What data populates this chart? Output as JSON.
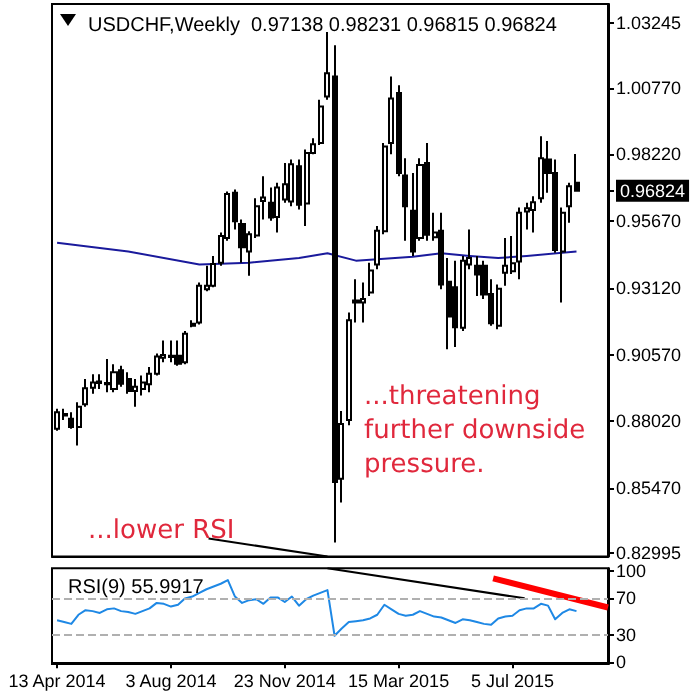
{
  "chart_data": [
    {
      "type": "candlestick",
      "title": "USDCHF,Weekly  0.97138 0.98231 0.96815 0.96824",
      "x": [
        "2014-04-13",
        "2014-04-20",
        "2014-04-27",
        "2014-05-04",
        "2014-05-11",
        "2014-05-18",
        "2014-05-25",
        "2014-06-01",
        "2014-06-08",
        "2014-06-15",
        "2014-06-22",
        "2014-06-29",
        "2014-07-06",
        "2014-07-13",
        "2014-07-20",
        "2014-07-27",
        "2014-08-03",
        "2014-08-10",
        "2014-08-17",
        "2014-08-24",
        "2014-08-31",
        "2014-09-07",
        "2014-09-14",
        "2014-09-21",
        "2014-09-28",
        "2014-10-05",
        "2014-10-12",
        "2014-10-19",
        "2014-10-26",
        "2014-11-02",
        "2014-11-09",
        "2014-11-16",
        "2014-11-23",
        "2014-11-30",
        "2014-12-07",
        "2014-12-14",
        "2014-12-21",
        "2014-12-28",
        "2015-01-04",
        "2015-01-11",
        "2015-01-18",
        "2015-01-25",
        "2015-02-01",
        "2015-02-08",
        "2015-02-15",
        "2015-02-22",
        "2015-03-01",
        "2015-03-08",
        "2015-03-15",
        "2015-03-22",
        "2015-03-29",
        "2015-04-05",
        "2015-04-12",
        "2015-04-19",
        "2015-04-26",
        "2015-05-03",
        "2015-05-10",
        "2015-05-17",
        "2015-05-24",
        "2015-05-31",
        "2015-06-07",
        "2015-06-14",
        "2015-06-21",
        "2015-06-28",
        "2015-07-05",
        "2015-07-12",
        "2015-07-19",
        "2015-07-26",
        "2015-08-02",
        "2015-08-09",
        "2015-08-16",
        "2015-08-23",
        "2015-08-30",
        "2015-09-06"
      ],
      "series": [
        {
          "type": "candlestick",
          "color": "#000000",
          "ohlc": [
            [
              0.8774,
              0.885,
              0.8766,
              0.8837
            ],
            [
              0.8825,
              0.885,
              0.8807,
              0.883
            ],
            [
              0.8812,
              0.8837,
              0.8774,
              0.8781
            ],
            [
              0.8781,
              0.8875,
              0.871,
              0.8858
            ],
            [
              0.8868,
              0.8964,
              0.8858,
              0.8929
            ],
            [
              0.8931,
              0.8982,
              0.8908,
              0.8951
            ],
            [
              0.8949,
              0.8982,
              0.8926,
              0.8954
            ],
            [
              0.8944,
              0.904,
              0.8913,
              0.8949
            ],
            [
              0.8926,
              0.902,
              0.8913,
              0.899
            ],
            [
              0.8997,
              0.9015,
              0.8934,
              0.8946
            ],
            [
              0.8964,
              0.899,
              0.8908,
              0.8918
            ],
            [
              0.8918,
              0.8964,
              0.8858,
              0.8934
            ],
            [
              0.8926,
              0.8977,
              0.8901,
              0.8951
            ],
            [
              0.8944,
              0.901,
              0.8913,
              0.8984
            ],
            [
              0.8984,
              0.9061,
              0.8977,
              0.905
            ],
            [
              0.9045,
              0.9111,
              0.9028,
              0.9056
            ],
            [
              0.9053,
              0.9111,
              0.9028,
              0.9048
            ],
            [
              0.9053,
              0.9111,
              0.9015,
              0.9022
            ],
            [
              0.9028,
              0.9147,
              0.902,
              0.9137
            ],
            [
              0.9167,
              0.9188,
              0.9162,
              0.9175
            ],
            [
              0.918,
              0.9332,
              0.9172,
              0.932
            ],
            [
              0.9307,
              0.9396,
              0.9299,
              0.932
            ],
            [
              0.932,
              0.9434,
              0.9314,
              0.9403
            ],
            [
              0.9408,
              0.9523,
              0.9396,
              0.951
            ],
            [
              0.9502,
              0.968,
              0.9492,
              0.967
            ],
            [
              0.9675,
              0.9688,
              0.9535,
              0.9566
            ],
            [
              0.9556,
              0.9573,
              0.9408,
              0.9467
            ],
            [
              0.9451,
              0.9528,
              0.9358,
              0.9517
            ],
            [
              0.9512,
              0.9654,
              0.9502,
              0.9624
            ],
            [
              0.9644,
              0.9738,
              0.9573,
              0.9657
            ],
            [
              0.9637,
              0.9695,
              0.9568,
              0.9581
            ],
            [
              0.9583,
              0.9713,
              0.9523,
              0.9695
            ],
            [
              0.9649,
              0.9789,
              0.9637,
              0.9708
            ],
            [
              0.9642,
              0.9802,
              0.9624,
              0.9784
            ],
            [
              0.9776,
              0.9802,
              0.9611,
              0.9629
            ],
            [
              0.9634,
              0.984,
              0.9548,
              0.9827
            ],
            [
              0.9827,
              0.9883,
              0.9822,
              0.986
            ],
            [
              0.9865,
              1.003,
              0.9858,
              1.0005
            ],
            [
              1.0043,
              1.0289,
              1.003,
              1.0132
            ],
            [
              1.0119,
              1.0238,
              0.834,
              0.8571
            ],
            [
              0.8583,
              0.8842,
              0.8492,
              0.8792
            ],
            [
              0.8807,
              0.9218,
              0.8787,
              0.9188
            ],
            [
              0.9256,
              0.9345,
              0.918,
              0.9264
            ],
            [
              0.9256,
              0.9332,
              0.918,
              0.9269
            ],
            [
              0.9294,
              0.9408,
              0.9281,
              0.9378
            ],
            [
              0.9401,
              0.9548,
              0.9383,
              0.953
            ],
            [
              0.9528,
              0.9865,
              0.9517,
              0.9852
            ],
            [
              0.9865,
              1.0119,
              0.9822,
              1.0035
            ],
            [
              1.0056,
              1.0086,
              0.9738,
              0.9751
            ],
            [
              0.9741,
              0.9807,
              0.9492,
              0.9624
            ],
            [
              0.9606,
              0.9751,
              0.9434,
              0.9451
            ],
            [
              0.9502,
              0.9807,
              0.9492,
              0.9781
            ],
            [
              0.9789,
              0.9865,
              0.9492,
              0.9515
            ],
            [
              0.9505,
              0.9599,
              0.9492,
              0.9523
            ],
            [
              0.953,
              0.9599,
              0.9307,
              0.9325
            ],
            [
              0.9335,
              0.9426,
              0.9078,
              0.9203
            ],
            [
              0.9314,
              0.9416,
              0.9086,
              0.9162
            ],
            [
              0.916,
              0.9434,
              0.9147,
              0.9416
            ],
            [
              0.9401,
              0.9535,
              0.9383,
              0.9426
            ],
            [
              0.9396,
              0.9434,
              0.9281,
              0.9363
            ],
            [
              0.9396,
              0.9416,
              0.9269,
              0.9287
            ],
            [
              0.9289,
              0.9345,
              0.9167,
              0.9177
            ],
            [
              0.9167,
              0.9325,
              0.9154,
              0.9309
            ],
            [
              0.937,
              0.9502,
              0.932,
              0.9396
            ],
            [
              0.9375,
              0.951,
              0.9365,
              0.9406
            ],
            [
              0.9413,
              0.9619,
              0.9345,
              0.9599
            ],
            [
              0.9604,
              0.9637,
              0.9535,
              0.9616
            ],
            [
              0.9609,
              0.9662,
              0.9523,
              0.9639
            ],
            [
              0.9654,
              0.9891,
              0.9637,
              0.9807
            ],
            [
              0.9802,
              0.9873,
              0.9675,
              0.9751
            ],
            [
              0.9751,
              0.9802,
              0.9446,
              0.9457
            ],
            [
              0.9451,
              0.9619,
              0.9256,
              0.9599
            ],
            [
              0.9624,
              0.9713,
              0.9561,
              0.97
            ],
            [
              0.97138,
              0.98231,
              0.96815,
              0.96824
            ]
          ]
        },
        {
          "type": "line",
          "color": "#1a1a9c",
          "x": [
            "2014-04-13",
            "2014-06-22",
            "2014-08-31",
            "2014-10-19",
            "2014-12-07",
            "2015-01-04",
            "2015-02-01",
            "2015-03-29",
            "2015-04-26",
            "2015-05-24",
            "2015-06-21",
            "2015-07-19",
            "2015-09-06"
          ],
          "values": [
            0.9484,
            0.9451,
            0.9401,
            0.9408,
            0.9426,
            0.9444,
            0.9416,
            0.9431,
            0.9444,
            0.9434,
            0.9426,
            0.9434,
            0.9451
          ]
        },
        {
          "type": "line",
          "color": "#000000",
          "x": [
            "2014-09-09",
            "2015-01-04"
          ],
          "values": [
            0.8355,
            0.8286
          ]
        }
      ],
      "xlim": [
        "2014-04-08",
        "2015-10-07"
      ],
      "ylim": [
        0.8286,
        1.0396
      ],
      "yticks": [
        1.03245,
        {
          "value": 1.0077,
          "label": "1.00770"
        },
        {
          "value": 0.9822,
          "label": "0.98220"
        },
        {
          "value": 0.96824,
          "label": "0.96824"
        },
        {
          "value": 0.9567,
          "label": "0.95670"
        },
        {
          "value": 0.9312,
          "label": "0.93120"
        },
        {
          "value": 0.9057,
          "label": "0.90570"
        },
        {
          "value": 0.8802,
          "label": "0.88020"
        },
        {
          "value": 0.8547,
          "label": "0.85470"
        },
        0.82995
      ],
      "tick_labels": "y",
      "annotations": [
        "...threatening further downside pressure.",
        "...lower RSI"
      ]
    },
    {
      "type": "line",
      "title": "RSI(9) 55.9917",
      "x": [
        "2014-04-13",
        "2014-04-20",
        "2014-04-27",
        "2014-05-04",
        "2014-05-11",
        "2014-05-18",
        "2014-05-25",
        "2014-06-01",
        "2014-06-08",
        "2014-06-15",
        "2014-06-22",
        "2014-06-29",
        "2014-07-06",
        "2014-07-13",
        "2014-07-20",
        "2014-07-27",
        "2014-08-03",
        "2014-08-10",
        "2014-08-17",
        "2014-08-24",
        "2014-08-31",
        "2014-09-07",
        "2014-09-14",
        "2014-09-21",
        "2014-09-28",
        "2014-10-05",
        "2014-10-12",
        "2014-10-19",
        "2014-10-26",
        "2014-11-02",
        "2014-11-09",
        "2014-11-16",
        "2014-11-23",
        "2014-11-30",
        "2014-12-07",
        "2014-12-14",
        "2014-12-21",
        "2014-12-28",
        "2015-01-04",
        "2015-01-11",
        "2015-01-18",
        "2015-01-25",
        "2015-02-01",
        "2015-02-08",
        "2015-02-15",
        "2015-02-22",
        "2015-03-01",
        "2015-03-08",
        "2015-03-15",
        "2015-03-22",
        "2015-03-29",
        "2015-04-05",
        "2015-04-12",
        "2015-04-19",
        "2015-04-26",
        "2015-05-03",
        "2015-05-10",
        "2015-05-17",
        "2015-05-24",
        "2015-05-31",
        "2015-06-07",
        "2015-06-14",
        "2015-06-21",
        "2015-06-28",
        "2015-07-05",
        "2015-07-12",
        "2015-07-19",
        "2015-07-26",
        "2015-08-02",
        "2015-08-09",
        "2015-08-16",
        "2015-08-23",
        "2015-08-30",
        "2015-09-06"
      ],
      "series": [
        {
          "color": "#1e88e5",
          "values": [
            46,
            44,
            42,
            52,
            57,
            56,
            54,
            58,
            59,
            56,
            55,
            53,
            56,
            59,
            65,
            64,
            61,
            63,
            70,
            72,
            76,
            80,
            83,
            86,
            90,
            72,
            65,
            68,
            69,
            64,
            71,
            71,
            66,
            72,
            62,
            69,
            73,
            76,
            79,
            29,
            37,
            44,
            45,
            46,
            48,
            52,
            63,
            58,
            53,
            51,
            52,
            56,
            53,
            50,
            49,
            46,
            43,
            47,
            46,
            44,
            42,
            41,
            48,
            50,
            51,
            57,
            59,
            59,
            64,
            62,
            47,
            54,
            58,
            56
          ]
        },
        {
          "color": "#000000",
          "x": [
            "2015-01-04",
            "2015-07-17"
          ],
          "values": [
            103,
            70
          ]
        },
        {
          "color": "#ff0000",
          "x": [
            "2015-06-16",
            "2015-10-07"
          ],
          "values": [
            92,
            60
          ]
        }
      ],
      "xlim": [
        "2014-04-08",
        "2015-10-07"
      ],
      "ylim": [
        -2,
        103
      ],
      "yticks": [
        0,
        30,
        70,
        100
      ],
      "xticks": [
        {
          "value": "2014-04-13",
          "label": "13 Apr 2014"
        },
        {
          "value": "2014-08-03",
          "label": "3 Aug 2014"
        },
        {
          "value": "2014-11-23",
          "label": "23 Nov 2014"
        },
        {
          "value": "2015-03-15",
          "label": "15 Mar 2015"
        },
        {
          "value": "2015-07-05",
          "label": "5 Jul 2015"
        }
      ],
      "ref_lines": [
        {
          "axis": "y",
          "value": 70,
          "color": "#b0b0b0",
          "line_style": "dashed"
        },
        {
          "axis": "y",
          "value": 30,
          "color": "#b0b0b0",
          "line_style": "dashed"
        }
      ]
    }
  ]
}
